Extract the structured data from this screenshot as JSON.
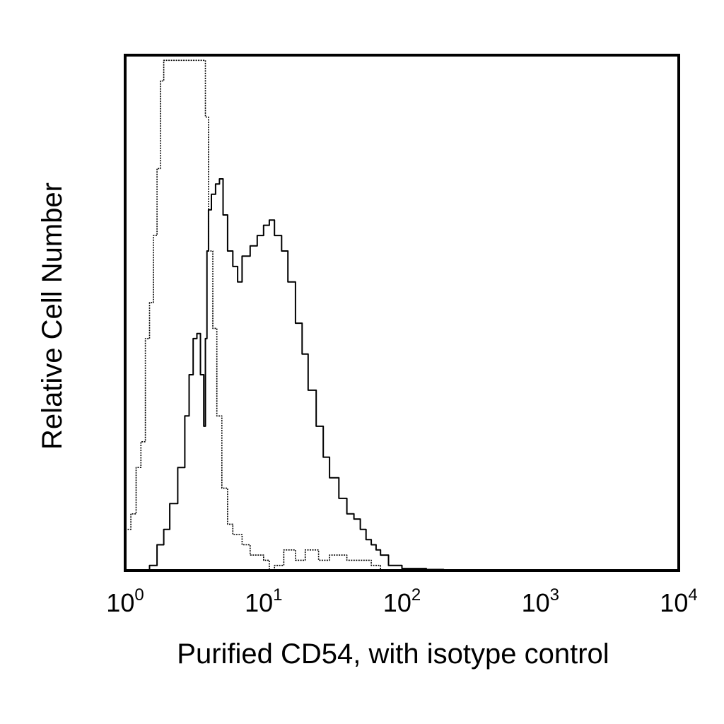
{
  "chart_data": {
    "type": "line",
    "subtype": "flow-cytometry-histogram",
    "title": "",
    "xlabel": "Purified CD54, with isotype control",
    "ylabel": "Relative Cell Number",
    "x_scale": "log",
    "xlim": [
      1,
      10000
    ],
    "ylim": [
      0,
      1
    ],
    "x_ticks": [
      {
        "base": "10",
        "exp": "0",
        "value": 1
      },
      {
        "base": "10",
        "exp": "1",
        "value": 10
      },
      {
        "base": "10",
        "exp": "2",
        "value": 100
      },
      {
        "base": "10",
        "exp": "3",
        "value": 1000
      },
      {
        "base": "10",
        "exp": "4",
        "value": 10000
      }
    ],
    "grid": false,
    "legend": "none",
    "series": [
      {
        "role": "isotype-control",
        "style": "dotted",
        "color": "#000000",
        "x": [
          1.0,
          1.1,
          1.2,
          1.3,
          1.4,
          1.5,
          1.6,
          1.7,
          1.8,
          1.9,
          2.0,
          2.1,
          2.3,
          2.6,
          2.9,
          3.2,
          3.5,
          3.7,
          3.8,
          4.0,
          4.3,
          4.6,
          5.0,
          5.5,
          6.0,
          7.0,
          8.0,
          10.0,
          11.0,
          12.0,
          14.0,
          17.0,
          20.0,
          25.0,
          30.0,
          40.0,
          50.0,
          60.0,
          70.0
        ],
        "y": [
          0.08,
          0.11,
          0.2,
          0.25,
          0.45,
          0.52,
          0.65,
          0.78,
          0.95,
          0.99,
          0.99,
          0.99,
          0.99,
          0.99,
          0.99,
          0.99,
          0.99,
          0.99,
          0.88,
          0.62,
          0.47,
          0.3,
          0.16,
          0.09,
          0.07,
          0.05,
          0.03,
          0.02,
          0.0,
          0.01,
          0.04,
          0.02,
          0.04,
          0.02,
          0.03,
          0.02,
          0.02,
          0.01,
          0.0
        ]
      },
      {
        "role": "CD54",
        "style": "solid",
        "color": "#000000",
        "x": [
          1.3,
          1.5,
          1.7,
          1.9,
          2.1,
          2.4,
          2.7,
          2.9,
          3.1,
          3.3,
          3.5,
          3.7,
          3.8,
          3.9,
          4.0,
          4.2,
          4.5,
          4.8,
          5.1,
          5.5,
          6.0,
          6.5,
          7.0,
          8.0,
          9.0,
          10.0,
          11.0,
          12.0,
          13.5,
          15.0,
          17.0,
          19.0,
          21.0,
          24.0,
          27.0,
          30.0,
          35.0,
          40.0,
          45.0,
          50.0,
          55.0,
          60.0,
          65.0,
          70.0,
          80.0,
          100.0,
          150.0,
          200.0
        ],
        "y": [
          0.0,
          0.01,
          0.05,
          0.08,
          0.13,
          0.2,
          0.3,
          0.38,
          0.45,
          0.46,
          0.38,
          0.28,
          0.45,
          0.62,
          0.7,
          0.73,
          0.75,
          0.76,
          0.69,
          0.62,
          0.59,
          0.56,
          0.61,
          0.63,
          0.65,
          0.67,
          0.68,
          0.65,
          0.62,
          0.56,
          0.48,
          0.42,
          0.35,
          0.28,
          0.22,
          0.18,
          0.14,
          0.11,
          0.1,
          0.08,
          0.06,
          0.05,
          0.04,
          0.03,
          0.01,
          0.004,
          0.002,
          0.0
        ]
      }
    ]
  }
}
